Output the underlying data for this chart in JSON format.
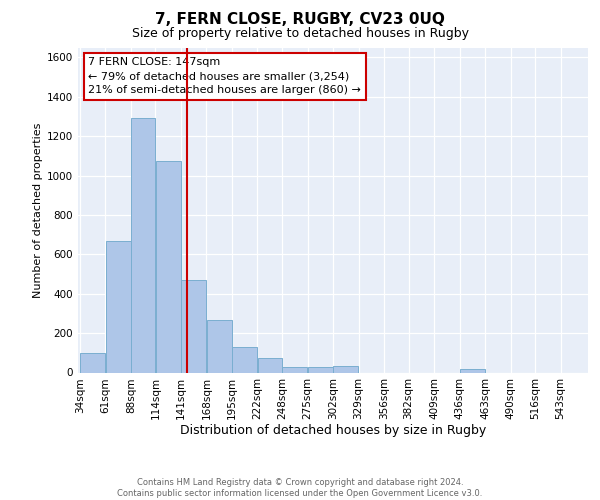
{
  "title": "7, FERN CLOSE, RUGBY, CV23 0UQ",
  "subtitle": "Size of property relative to detached houses in Rugby",
  "xlabel": "Distribution of detached houses by size in Rugby",
  "ylabel": "Number of detached properties",
  "footer_line1": "Contains HM Land Registry data © Crown copyright and database right 2024.",
  "footer_line2": "Contains public sector information licensed under the Open Government Licence v3.0.",
  "bar_edges": [
    34,
    61,
    88,
    114,
    141,
    168,
    195,
    222,
    248,
    275,
    302,
    329,
    356,
    382,
    409,
    436,
    463,
    490,
    516,
    543,
    570
  ],
  "bar_heights": [
    100,
    670,
    1290,
    1075,
    470,
    265,
    130,
    75,
    30,
    30,
    35,
    0,
    0,
    0,
    0,
    20,
    0,
    0,
    0,
    0
  ],
  "bar_color": "#aec6e8",
  "bar_edgecolor": "#7aaed0",
  "vline_x": 147,
  "vline_color": "#cc0000",
  "annotation_line1": "7 FERN CLOSE: 147sqm",
  "annotation_line2": "← 79% of detached houses are smaller (3,254)",
  "annotation_line3": "21% of semi-detached houses are larger (860) →",
  "ylim": [
    0,
    1650
  ],
  "yticks": [
    0,
    200,
    400,
    600,
    800,
    1000,
    1200,
    1400,
    1600
  ],
  "bg_color": "#e8eef8",
  "title_fontsize": 11,
  "subtitle_fontsize": 9,
  "xlabel_fontsize": 9,
  "ylabel_fontsize": 8,
  "tick_fontsize": 7.5,
  "footer_fontsize": 6,
  "annotation_fontsize": 8
}
